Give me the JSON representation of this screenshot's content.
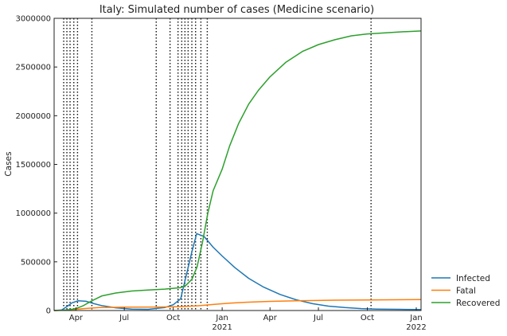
{
  "chart_data": {
    "type": "line",
    "title": "Italy: Simulated number of cases (Medicine scenario)",
    "xlabel": "",
    "ylabel": "Cases",
    "ylim": [
      0,
      3000000
    ],
    "xlim": [
      "2020-02-20",
      "2022-01-10"
    ],
    "y_ticks": [
      0,
      500000,
      1000000,
      1500000,
      2000000,
      2500000,
      3000000
    ],
    "x_ticks": [
      {
        "date": "2020-04-01",
        "label": "Apr",
        "sublabel": ""
      },
      {
        "date": "2020-07-01",
        "label": "Jul",
        "sublabel": ""
      },
      {
        "date": "2020-10-01",
        "label": "Oct",
        "sublabel": ""
      },
      {
        "date": "2021-01-01",
        "label": "Jan",
        "sublabel": "2021"
      },
      {
        "date": "2021-04-01",
        "label": "Apr",
        "sublabel": ""
      },
      {
        "date": "2021-07-01",
        "label": "Jul",
        "sublabel": ""
      },
      {
        "date": "2021-10-01",
        "label": "Oct",
        "sublabel": ""
      },
      {
        "date": "2022-01-01",
        "label": "Jan",
        "sublabel": "2022"
      }
    ],
    "vlines": [
      "2020-03-09",
      "2020-03-15",
      "2020-03-21",
      "2020-03-28",
      "2020-04-04",
      "2020-05-01",
      "2020-08-30",
      "2020-09-25",
      "2020-10-10",
      "2020-10-17",
      "2020-10-23",
      "2020-10-29",
      "2020-11-05",
      "2020-11-12",
      "2020-11-22",
      "2020-12-04",
      "2021-10-08"
    ],
    "legend_position": "outside-right-bottom",
    "grid": false,
    "series": [
      {
        "name": "Infected",
        "color": "#1f77b4",
        "points": [
          [
            "2020-02-20",
            0
          ],
          [
            "2020-03-05",
            5000
          ],
          [
            "2020-03-15",
            40000
          ],
          [
            "2020-03-25",
            80000
          ],
          [
            "2020-04-05",
            100000
          ],
          [
            "2020-04-20",
            95000
          ],
          [
            "2020-05-05",
            70000
          ],
          [
            "2020-05-20",
            50000
          ],
          [
            "2020-06-15",
            28000
          ],
          [
            "2020-07-15",
            15000
          ],
          [
            "2020-08-15",
            12000
          ],
          [
            "2020-09-15",
            30000
          ],
          [
            "2020-10-01",
            60000
          ],
          [
            "2020-10-15",
            120000
          ],
          [
            "2020-10-25",
            350000
          ],
          [
            "2020-11-05",
            600000
          ],
          [
            "2020-11-14",
            790000
          ],
          [
            "2020-11-28",
            760000
          ],
          [
            "2020-12-15",
            650000
          ],
          [
            "2021-01-01",
            560000
          ],
          [
            "2021-01-25",
            440000
          ],
          [
            "2021-02-20",
            330000
          ],
          [
            "2021-03-20",
            240000
          ],
          [
            "2021-04-20",
            165000
          ],
          [
            "2021-05-20",
            110000
          ],
          [
            "2021-06-20",
            70000
          ],
          [
            "2021-07-20",
            45000
          ],
          [
            "2021-08-20",
            30000
          ],
          [
            "2021-09-20",
            20000
          ],
          [
            "2021-10-20",
            15000
          ],
          [
            "2021-12-01",
            12000
          ],
          [
            "2022-01-10",
            10000
          ]
        ]
      },
      {
        "name": "Fatal",
        "color": "#ff7f0e",
        "points": [
          [
            "2020-02-20",
            0
          ],
          [
            "2020-03-20",
            5000
          ],
          [
            "2020-04-15",
            20000
          ],
          [
            "2020-05-15",
            30000
          ],
          [
            "2020-07-01",
            34000
          ],
          [
            "2020-09-01",
            36000
          ],
          [
            "2020-10-15",
            40000
          ],
          [
            "2020-11-15",
            48000
          ],
          [
            "2020-12-15",
            62000
          ],
          [
            "2021-01-15",
            76000
          ],
          [
            "2021-02-15",
            85000
          ],
          [
            "2021-04-01",
            94000
          ],
          [
            "2021-06-01",
            101000
          ],
          [
            "2021-08-01",
            106000
          ],
          [
            "2021-10-01",
            109000
          ],
          [
            "2022-01-10",
            113000
          ]
        ]
      },
      {
        "name": "Recovered",
        "color": "#2ca02c",
        "points": [
          [
            "2020-02-20",
            0
          ],
          [
            "2020-03-15",
            5000
          ],
          [
            "2020-04-01",
            20000
          ],
          [
            "2020-04-15",
            50000
          ],
          [
            "2020-05-01",
            100000
          ],
          [
            "2020-05-20",
            150000
          ],
          [
            "2020-06-15",
            180000
          ],
          [
            "2020-07-15",
            200000
          ],
          [
            "2020-08-15",
            210000
          ],
          [
            "2020-09-15",
            220000
          ],
          [
            "2020-10-15",
            235000
          ],
          [
            "2020-10-25",
            260000
          ],
          [
            "2020-11-05",
            320000
          ],
          [
            "2020-11-15",
            450000
          ],
          [
            "2020-11-25",
            700000
          ],
          [
            "2020-12-05",
            1000000
          ],
          [
            "2020-12-15",
            1230000
          ],
          [
            "2021-01-01",
            1450000
          ],
          [
            "2021-01-15",
            1690000
          ],
          [
            "2021-02-01",
            1920000
          ],
          [
            "2021-02-20",
            2120000
          ],
          [
            "2021-03-10",
            2260000
          ],
          [
            "2021-04-01",
            2400000
          ],
          [
            "2021-05-01",
            2550000
          ],
          [
            "2021-06-01",
            2660000
          ],
          [
            "2021-07-01",
            2730000
          ],
          [
            "2021-08-01",
            2780000
          ],
          [
            "2021-09-01",
            2820000
          ],
          [
            "2021-10-01",
            2840000
          ],
          [
            "2021-11-01",
            2850000
          ],
          [
            "2021-12-01",
            2860000
          ],
          [
            "2022-01-10",
            2870000
          ]
        ]
      }
    ]
  }
}
